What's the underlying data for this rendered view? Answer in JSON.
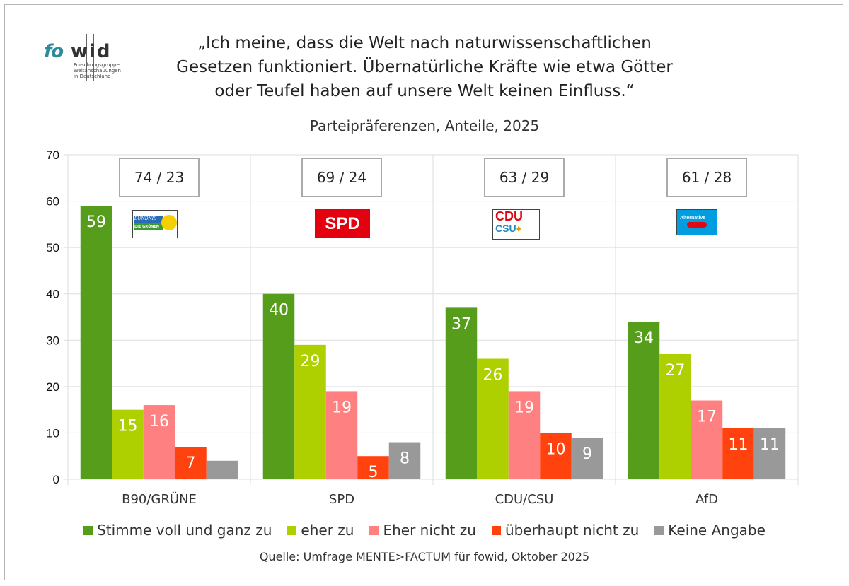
{
  "logo": {
    "part1": "fo",
    "part2": "wid",
    "tagline": [
      "Forschungsgruppe",
      "Weltanschauungen",
      "in Deutschland"
    ]
  },
  "title_lines": [
    "„Ich meine, dass die Welt nach naturwissenschaftlichen",
    "Gesetzen funktioniert. Übernatürliche Kräfte wie etwa Götter",
    "oder Teufel haben auf unsere Welt keinen Einfluss.“"
  ],
  "subtitle": "Parteipräferenzen, Anteile, 2025",
  "source": "Quelle: Umfrage MENTE>FACTUM für fowid, Oktober 2025",
  "chart_data": {
    "type": "bar",
    "title": "„Ich meine, dass die Welt nach naturwissenschaftlichen Gesetzen funktioniert. Übernatürliche Kräfte wie etwa Götter oder Teufel haben auf unsere Welt keinen Einfluss.“",
    "subtitle": "Parteipräferenzen, Anteile, 2025",
    "xlabel": "",
    "ylabel": "",
    "ylim": [
      0,
      70
    ],
    "yticks": [
      0,
      10,
      20,
      30,
      40,
      50,
      60,
      70
    ],
    "grid": true,
    "legend_position": "bottom",
    "categories": [
      "B90/GRÜNE",
      "SPD",
      "CDU/CSU",
      "AfD"
    ],
    "group_annotations": [
      "74 / 23",
      "69 / 24",
      "63 / 29",
      "61 / 28"
    ],
    "party_logos": [
      "BÜNDNIS 90 / DIE GRÜNEN",
      "SPD",
      "CDU CSU",
      "Alternative für Deutschland"
    ],
    "series": [
      {
        "name": "Stimme voll und ganz zu",
        "color": "#579d1c",
        "values": [
          59,
          40,
          37,
          34
        ],
        "labels": [
          "59",
          "40",
          "37",
          "34"
        ]
      },
      {
        "name": "eher zu",
        "color": "#aecf00",
        "values": [
          15,
          29,
          26,
          27
        ],
        "labels": [
          "15",
          "29",
          "26",
          "27"
        ]
      },
      {
        "name": "Eher nicht zu",
        "color": "#ff8080",
        "values": [
          16,
          19,
          19,
          17
        ],
        "labels": [
          "16",
          "19",
          "19",
          "17"
        ]
      },
      {
        "name": "überhaupt nicht zu",
        "color": "#ff420e",
        "values": [
          7,
          5,
          10,
          11
        ],
        "labels": [
          "7",
          "5",
          "10",
          "11"
        ]
      },
      {
        "name": "Keine Angabe",
        "color": "#999999",
        "values": [
          4,
          8,
          9,
          11
        ],
        "labels": [
          "",
          "8",
          "9",
          "11"
        ]
      }
    ]
  }
}
